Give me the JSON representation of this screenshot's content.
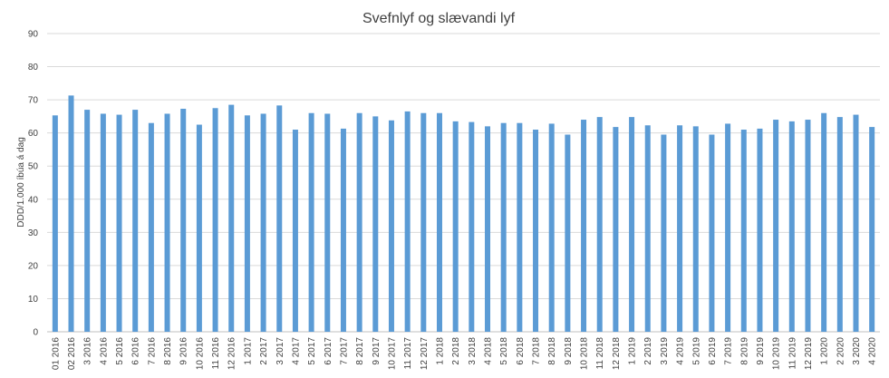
{
  "chart_data": {
    "type": "bar",
    "title": "Svefnlyf og slævandi lyf",
    "xlabel": "",
    "ylabel": "DDD/1.000 íbúa á dag",
    "ylim": [
      0,
      90
    ],
    "yticks": [
      0,
      10,
      20,
      30,
      40,
      50,
      60,
      70,
      80,
      90
    ],
    "grid": true,
    "bar_color": "#5b9bd5",
    "categories": [
      "01 2016",
      "02 2016",
      "3 2016",
      "4 2016",
      "5 2016",
      "6 2016",
      "7 2016",
      "8 2016",
      "9 2016",
      "10 2016",
      "11 2016",
      "12 2016",
      "1 2017",
      "2 2017",
      "3 2017",
      "4 2017",
      "5 2017",
      "6 2017",
      "7 2017",
      "8 2017",
      "9 2017",
      "10 2017",
      "11 2017",
      "12 2017",
      "1 2018",
      "2 2018",
      "3 2018",
      "4 2018",
      "5 2018",
      "6 2018",
      "7 2018",
      "8 2018",
      "9 2018",
      "10 2018",
      "11 2018",
      "12 2018",
      "1 2019",
      "2 2019",
      "3 2019",
      "4 2019",
      "5 2019",
      "6 2019",
      "7 2019",
      "8 2019",
      "9 2019",
      "10 2019",
      "11 2019",
      "12 2019",
      "1 2020",
      "2 2020",
      "3 2020",
      "4 2020"
    ],
    "values": [
      65.3,
      71.3,
      67.0,
      65.8,
      65.5,
      67.0,
      63.0,
      65.8,
      67.3,
      62.5,
      67.5,
      68.5,
      65.3,
      65.8,
      68.3,
      61.0,
      66.0,
      65.8,
      61.3,
      66.0,
      65.0,
      63.8,
      66.5,
      66.0,
      66.0,
      63.5,
      63.3,
      62.0,
      63.0,
      63.0,
      61.0,
      62.8,
      59.5,
      64.0,
      64.8,
      61.8,
      64.8,
      62.3,
      59.5,
      62.3,
      62.0,
      59.5,
      62.8,
      61.0,
      61.3,
      64.0,
      63.5,
      64.0,
      66.0,
      64.8,
      65.5,
      61.8
    ]
  }
}
